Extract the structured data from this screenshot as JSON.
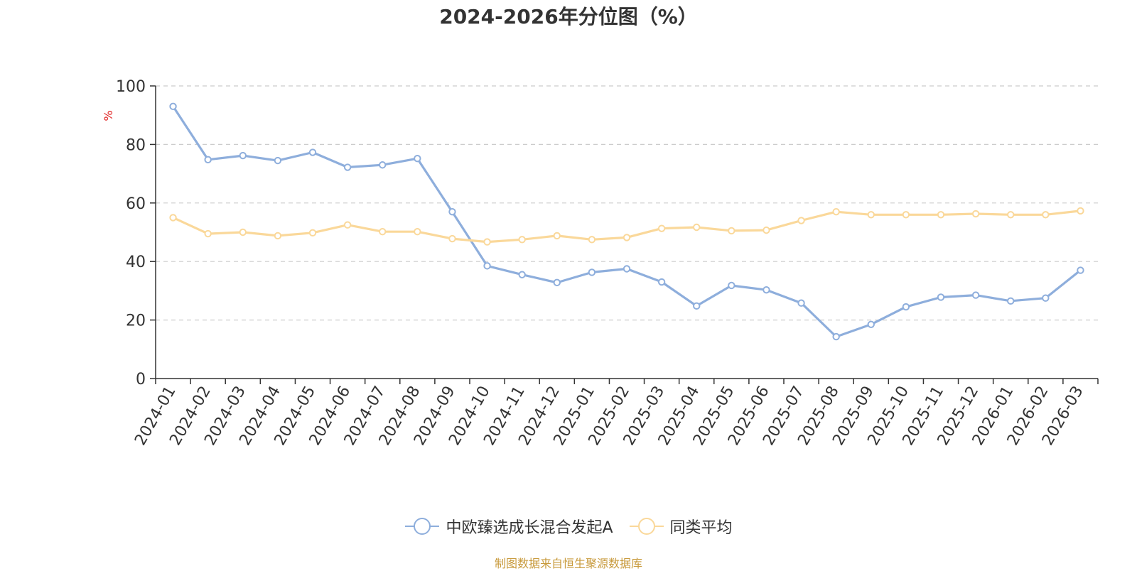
{
  "chart_data": {
    "type": "line",
    "title": "2024-2026年分位图（%）",
    "ylabel": "%",
    "xlabel": "",
    "ylim": [
      0,
      100
    ],
    "yticks": [
      0,
      20,
      40,
      60,
      80,
      100
    ],
    "grid": true,
    "legend_position": "bottom-center",
    "categories": [
      "2024-01",
      "2024-02",
      "2024-03",
      "2024-04",
      "2024-05",
      "2024-06",
      "2024-07",
      "2024-08",
      "2024-09",
      "2024-10",
      "2024-11",
      "2024-12",
      "2025-01",
      "2025-02",
      "2025-03",
      "2025-04",
      "2025-05",
      "2025-06",
      "2025-07",
      "2025-08",
      "2025-09",
      "2025-10",
      "2025-11",
      "2025-12",
      "2026-01",
      "2026-02",
      "2026-03"
    ],
    "series": [
      {
        "name": "中欧臻选成长混合发起A",
        "color": "#8eaedc",
        "values": [
          93,
          74.8,
          76.2,
          74.5,
          77.3,
          72.2,
          73,
          75.2,
          57,
          38.5,
          35.5,
          32.8,
          36.3,
          37.5,
          33,
          24.8,
          31.8,
          30.3,
          25.8,
          14.3,
          18.5,
          24.5,
          27.8,
          28.5,
          26.5,
          27.5,
          37
        ]
      },
      {
        "name": "同类平均",
        "color": "#fad89a",
        "values": [
          55,
          49.5,
          50,
          48.8,
          49.8,
          52.5,
          50.2,
          50.2,
          47.8,
          46.7,
          47.5,
          48.8,
          47.5,
          48.2,
          51.3,
          51.7,
          50.5,
          50.7,
          54,
          57,
          56,
          56,
          56,
          56.3,
          56,
          56,
          57.3
        ]
      }
    ]
  },
  "footer": {
    "source": "制图数据来自恒生聚源数据库"
  }
}
